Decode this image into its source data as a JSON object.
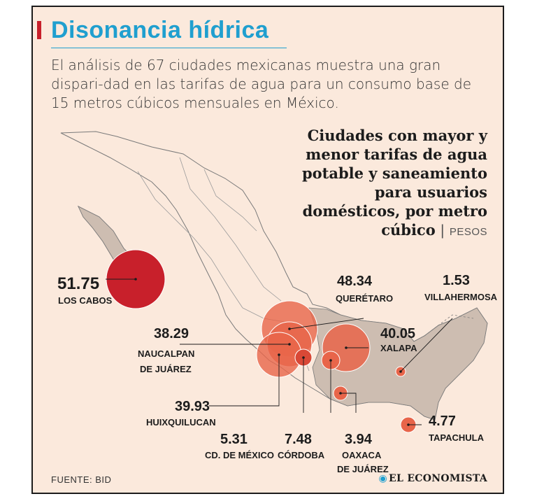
{
  "header": {
    "title": "Disonancia hídrica",
    "intro": "El análisis de 67 ciudades mexicanas muestra una gran dispari-dad en las tarifas de agua para un consumo base de 15 metros cúbicos mensuales en México."
  },
  "chart": {
    "title": "Ciudades con mayor y menor tarifas de agua potable y saneamiento para usuarios domésticos, por metro cúbico",
    "unit_separator": "|",
    "unit": "PESOS"
  },
  "chart_data": {
    "type": "bubble-map",
    "unit": "PESOS",
    "points": [
      {
        "city": "LOS CABOS",
        "value": 51.75
      },
      {
        "city": "QUERÉTARO",
        "value": 48.34
      },
      {
        "city": "VILLAHERMOSA",
        "value": 1.53
      },
      {
        "city": "NAUCALPAN DE JUÁREZ",
        "value": 38.29
      },
      {
        "city": "XALAPA",
        "value": 40.05
      },
      {
        "city": "HUIXQUILUCAN",
        "value": 39.93
      },
      {
        "city": "TAPACHULA",
        "value": 4.77
      },
      {
        "city": "CD. DE MÉXICO",
        "value": 5.31
      },
      {
        "city": "CÓRDOBA",
        "value": 7.48
      },
      {
        "city": "OAXACA DE JUÁREZ",
        "value": 3.94
      }
    ]
  },
  "labels": {
    "los_cabos": {
      "value": "51.75",
      "city": "LOS CABOS"
    },
    "queretaro": {
      "value": "48.34",
      "city": "QUERÉTARO"
    },
    "villahermosa": {
      "value": "1.53",
      "city": "VILLAHERMOSA"
    },
    "naucalpan": {
      "value": "38.29",
      "city1": "NAUCALPAN",
      "city2": "DE JUÁREZ"
    },
    "xalapa": {
      "value": "40.05",
      "city": "XALAPA"
    },
    "huixquilucan": {
      "value": "39.93",
      "city": "HUIXQUILUCAN"
    },
    "tapachula": {
      "value": "4.77",
      "city": "TAPACHULA"
    },
    "cdmx": {
      "value": "5.31",
      "city": "CD. DE MÉXICO"
    },
    "cordoba": {
      "value": "7.48",
      "city": "CÓRDOBA"
    },
    "oaxaca": {
      "value": "3.94",
      "city1": "OAXACA",
      "city2": "DE JUÁREZ"
    }
  },
  "footer": {
    "source": "FUENTE: BID",
    "brand": "EL ECONOMISTA"
  },
  "colors": {
    "accent": "#1f9fcf",
    "title_bar": "#c8202b",
    "bubble_max": "#c8202b",
    "bubble": "#e8654a",
    "highlight_region": "#cdbdb1",
    "background": "#fbe9dc"
  }
}
